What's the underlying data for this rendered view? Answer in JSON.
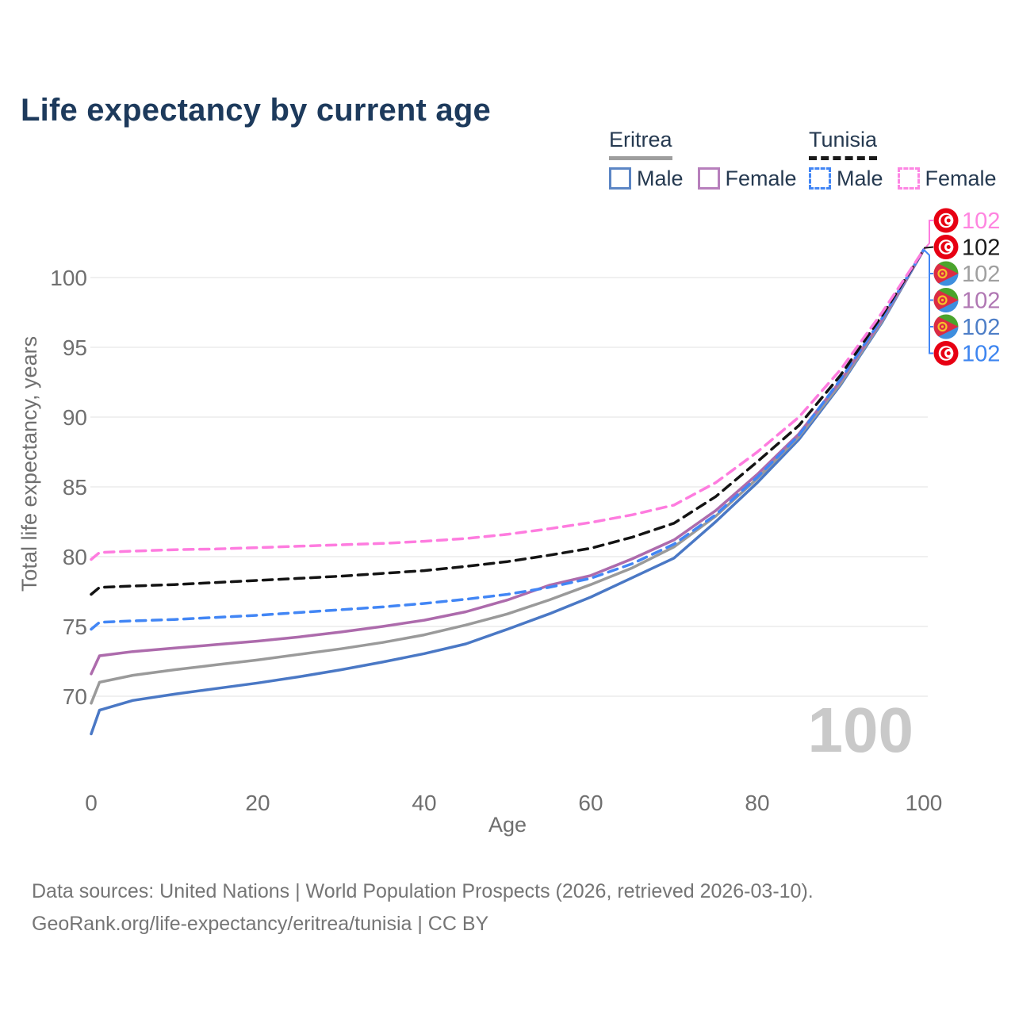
{
  "header": {
    "title": "Life expectancy by current age"
  },
  "legend": {
    "groups": [
      {
        "label": "Eritrea",
        "underline_color": "#9e9e9e",
        "underline_style": "solid",
        "items": [
          {
            "label": "Male",
            "color": "#5c86c5",
            "border_style": "solid"
          },
          {
            "label": "Female",
            "color": "#b77fbc",
            "border_style": "solid"
          }
        ]
      },
      {
        "label": "Tunisia",
        "underline_color": "#1a1a1a",
        "underline_style": "dashed",
        "items": [
          {
            "label": "Male",
            "color": "#4286f5",
            "border_style": "dashed"
          },
          {
            "label": "Female",
            "color": "#fd86e3",
            "border_style": "dashed"
          }
        ]
      }
    ]
  },
  "footer": {
    "line1": "Data sources: United Nations | World Population Prospects (2026, retrieved 2026-03-10).",
    "line2": "GeoRank.org/life-expectancy/eritrea/tunisia | CC BY"
  },
  "chart_data": {
    "type": "line",
    "title": "Life expectancy by current age",
    "xlabel": "Age",
    "ylabel": "Total life expectancy, years",
    "x_ticks": [
      0,
      20,
      40,
      60,
      80,
      100
    ],
    "y_ticks": [
      70,
      75,
      80,
      85,
      90,
      95,
      100
    ],
    "xlim": [
      0,
      100
    ],
    "ylim": [
      66,
      103
    ],
    "grid": "horizontal-only",
    "gridline_color": "#ebebeb",
    "tick_color": "#6f6f6f",
    "age_indicator": "100",
    "age_indicator_color": "#c9c9c9",
    "ages": [
      0,
      1,
      5,
      10,
      15,
      20,
      25,
      30,
      35,
      40,
      45,
      50,
      55,
      60,
      65,
      70,
      75,
      80,
      85,
      90,
      95,
      100
    ],
    "series": [
      {
        "name": "Eritrea Male",
        "country": "eritrea",
        "sex": "male",
        "color": "#4a78c5",
        "dash": false,
        "values": [
          67.3,
          69.0,
          69.7,
          70.15,
          70.55,
          70.95,
          71.4,
          71.9,
          72.45,
          73.05,
          73.75,
          74.8,
          75.9,
          77.1,
          78.5,
          79.9,
          82.5,
          85.3,
          88.4,
          92.3,
          96.8,
          102
        ]
      },
      {
        "name": "Eritrea Combined",
        "country": "eritrea",
        "sex": "combined",
        "color": "#9a9a9a",
        "dash": false,
        "values": [
          69.5,
          71.0,
          71.5,
          71.9,
          72.25,
          72.6,
          73.0,
          73.4,
          73.85,
          74.4,
          75.1,
          75.9,
          76.9,
          78.0,
          79.2,
          80.7,
          82.9,
          85.6,
          88.6,
          92.4,
          96.9,
          102
        ]
      },
      {
        "name": "Eritrea Female",
        "country": "eritrea",
        "sex": "female",
        "color": "#ad6bac",
        "dash": false,
        "values": [
          71.6,
          72.9,
          73.2,
          73.45,
          73.7,
          73.95,
          74.25,
          74.6,
          75.0,
          75.45,
          76.05,
          76.9,
          77.95,
          78.65,
          79.85,
          81.2,
          83.3,
          85.9,
          88.8,
          92.6,
          97.0,
          102
        ]
      },
      {
        "name": "Tunisia Male",
        "country": "tunisia",
        "sex": "male",
        "color": "#4286f5",
        "dash": true,
        "values": [
          74.8,
          75.3,
          75.4,
          75.5,
          75.65,
          75.8,
          76.0,
          76.2,
          76.4,
          76.65,
          76.95,
          77.3,
          77.8,
          78.45,
          79.5,
          80.9,
          83.0,
          85.7,
          88.7,
          92.7,
          97.1,
          102
        ]
      },
      {
        "name": "Tunisia Combined",
        "country": "tunisia",
        "sex": "combined",
        "color": "#141414",
        "dash": true,
        "values": [
          77.3,
          77.8,
          77.9,
          78.0,
          78.15,
          78.3,
          78.45,
          78.6,
          78.8,
          79.0,
          79.3,
          79.65,
          80.1,
          80.6,
          81.4,
          82.4,
          84.3,
          86.8,
          89.4,
          93.0,
          97.3,
          102
        ]
      },
      {
        "name": "Tunisia Female",
        "country": "tunisia",
        "sex": "female",
        "color": "#fe7cdf",
        "dash": true,
        "values": [
          79.8,
          80.3,
          80.4,
          80.5,
          80.55,
          80.65,
          80.75,
          80.85,
          80.95,
          81.1,
          81.3,
          81.6,
          82.0,
          82.45,
          83.0,
          83.7,
          85.3,
          87.5,
          90.0,
          93.4,
          97.5,
          102
        ]
      }
    ],
    "end_labels": [
      {
        "country": "tunisia",
        "series": "Tunisia Female",
        "value": "102",
        "color": "#ff85e0"
      },
      {
        "country": "tunisia",
        "series": "Tunisia Combined",
        "value": "102",
        "color": "#1a1a1a"
      },
      {
        "country": "eritrea",
        "series": "Eritrea Combined",
        "value": "102",
        "color": "#a0a0a0"
      },
      {
        "country": "eritrea",
        "series": "Eritrea Female",
        "value": "102",
        "color": "#b077b3"
      },
      {
        "country": "eritrea",
        "series": "Eritrea Male",
        "value": "102",
        "color": "#4d7ec7"
      },
      {
        "country": "tunisia",
        "series": "Tunisia Male",
        "value": "102",
        "color": "#3d85f0"
      }
    ],
    "leader_colors": {
      "up": "#fe7cdf",
      "down": "#4286f5",
      "mid": "#141414"
    }
  }
}
